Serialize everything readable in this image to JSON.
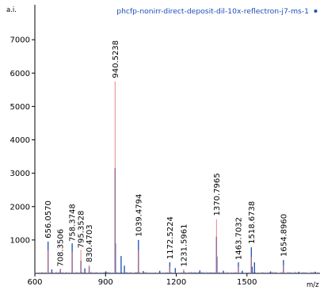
{
  "chart_data": {
    "type": "line",
    "xlabel": "m/z",
    "ylabel": "a.i.",
    "xlim": [
      600,
      1810
    ],
    "ylim": [
      0,
      8000
    ],
    "x_ticks": [
      600,
      900,
      1200,
      1500
    ],
    "y_ticks": [
      1000,
      2000,
      3000,
      4000,
      5000,
      6000,
      7000
    ],
    "grid": false,
    "legend_position": "top-right",
    "series": [
      {
        "name": "phcfp-nonirr-direct-deposit-dil-10x-reflectron-j7-ms-1",
        "color": "#1f4fb5",
        "peaks": [
          {
            "mz": 656.057,
            "intensity": 950
          },
          {
            "mz": 672.0,
            "intensity": 120
          },
          {
            "mz": 708.3506,
            "intensity": 130
          },
          {
            "mz": 758.3748,
            "intensity": 900
          },
          {
            "mz": 795.3528,
            "intensity": 380
          },
          {
            "mz": 812.0,
            "intensity": 150
          },
          {
            "mz": 830.4703,
            "intensity": 200
          },
          {
            "mz": 901.0,
            "intensity": 60
          },
          {
            "mz": 940.5238,
            "intensity": 3150
          },
          {
            "mz": 942.0,
            "intensity": 900
          },
          {
            "mz": 966.0,
            "intensity": 520
          },
          {
            "mz": 980.0,
            "intensity": 230
          },
          {
            "mz": 1039.4794,
            "intensity": 1000
          },
          {
            "mz": 1060.0,
            "intensity": 70
          },
          {
            "mz": 1130.0,
            "intensity": 80
          },
          {
            "mz": 1172.5224,
            "intensity": 330
          },
          {
            "mz": 1196.0,
            "intensity": 160
          },
          {
            "mz": 1231.5961,
            "intensity": 80
          },
          {
            "mz": 1300.0,
            "intensity": 90
          },
          {
            "mz": 1370.7965,
            "intensity": 1100
          },
          {
            "mz": 1372.5,
            "intensity": 500
          },
          {
            "mz": 1400.0,
            "intensity": 80
          },
          {
            "mz": 1463.7032,
            "intensity": 330
          },
          {
            "mz": 1480.0,
            "intensity": 80
          },
          {
            "mz": 1518.6738,
            "intensity": 780
          },
          {
            "mz": 1522.0,
            "intensity": 200
          },
          {
            "mz": 1532.0,
            "intensity": 330
          },
          {
            "mz": 1600.0,
            "intensity": 60
          },
          {
            "mz": 1654.896,
            "intensity": 400
          },
          {
            "mz": 1720.0,
            "intensity": 50
          },
          {
            "mz": 1790.0,
            "intensity": 50
          }
        ]
      },
      {
        "name": "",
        "color": "#e07070",
        "peaks": [
          {
            "mz": 656.057,
            "intensity": 700
          },
          {
            "mz": 708.3506,
            "intensity": 120
          },
          {
            "mz": 758.3748,
            "intensity": 650
          },
          {
            "mz": 795.3528,
            "intensity": 700
          },
          {
            "mz": 830.4703,
            "intensity": 250
          },
          {
            "mz": 940.5238,
            "intensity": 5750
          },
          {
            "mz": 1039.4794,
            "intensity": 700
          },
          {
            "mz": 1172.5224,
            "intensity": 200
          },
          {
            "mz": 1231.5961,
            "intensity": 120
          },
          {
            "mz": 1370.7965,
            "intensity": 1620
          },
          {
            "mz": 1463.7032,
            "intensity": 200
          },
          {
            "mz": 1518.6738,
            "intensity": 500
          },
          {
            "mz": 1654.896,
            "intensity": 250
          }
        ]
      }
    ],
    "peak_labels": [
      {
        "mz": 656.057,
        "text": "656.0570",
        "y": 1050
      },
      {
        "mz": 708.3506,
        "text": "708.3506",
        "y": 200
      },
      {
        "mz": 758.3748,
        "text": "758.3748",
        "y": 950
      },
      {
        "mz": 795.3528,
        "text": "795.3528",
        "y": 750
      },
      {
        "mz": 830.4703,
        "text": "830.4703",
        "y": 330
      },
      {
        "mz": 940.5238,
        "text": "940.5238",
        "y": 5850
      },
      {
        "mz": 1039.4794,
        "text": "1039.4794",
        "y": 1100
      },
      {
        "mz": 1172.5224,
        "text": "1172.5224",
        "y": 420
      },
      {
        "mz": 1231.5961,
        "text": "1231.5961",
        "y": 200
      },
      {
        "mz": 1370.7965,
        "text": "1370.7965",
        "y": 1720
      },
      {
        "mz": 1463.7032,
        "text": "1463.7032",
        "y": 400
      },
      {
        "mz": 1518.6738,
        "text": "1518.6738",
        "y": 880
      },
      {
        "mz": 1654.896,
        "text": "1654.8960",
        "y": 500
      }
    ]
  }
}
